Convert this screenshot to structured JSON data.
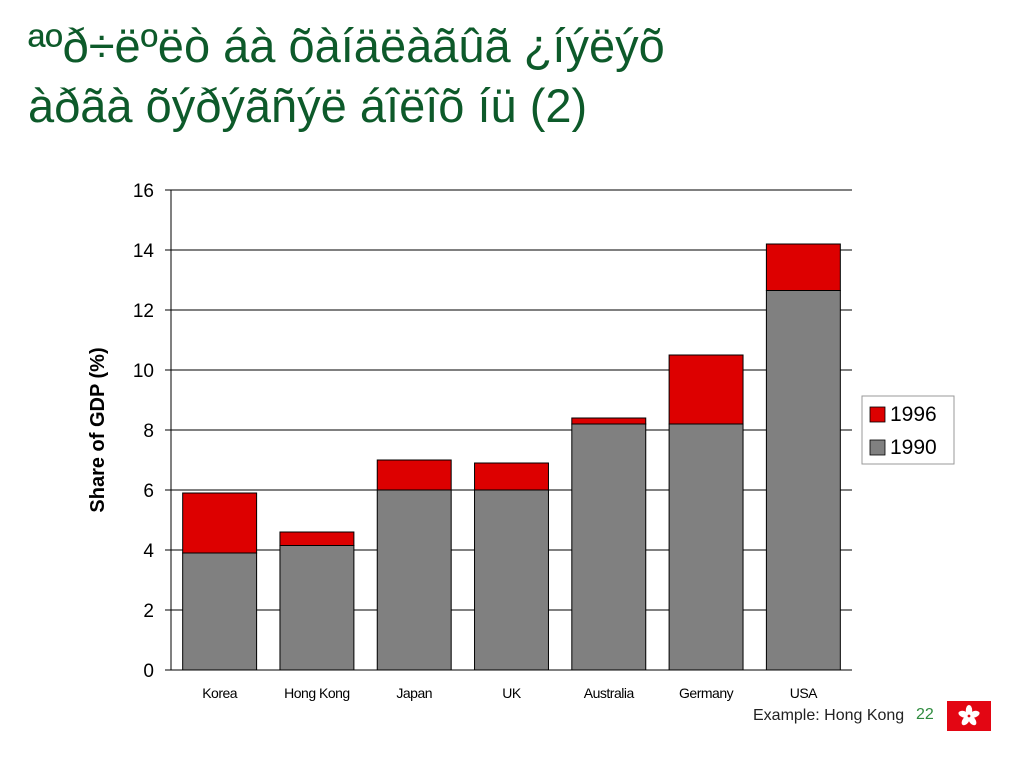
{
  "slide": {
    "title_line1": "ªºð÷ëºëò áà õàíäëàãûã ¿íýëýõ",
    "title_line2": "àðãà õýðýãñýë áîëîõ íü (2)",
    "footer_note": "Example: Hong Kong",
    "page_number": "22"
  },
  "colors": {
    "title": "#0d5a2a",
    "series_1990": "#808080",
    "series_1996": "#dd0000",
    "flag_red": "#e30613"
  },
  "chart_data": {
    "type": "bar",
    "stacked": true,
    "categories": [
      "Korea",
      "Hong Kong",
      "Japan",
      "UK",
      "Australia",
      "Germany",
      "USA"
    ],
    "series": [
      {
        "name": "1990",
        "color": "#808080",
        "values": [
          3.9,
          4.15,
          6.0,
          6.0,
          8.2,
          8.2,
          12.65
        ]
      },
      {
        "name": "1996",
        "color": "#dd0000",
        "values": [
          2.0,
          0.45,
          1.0,
          0.9,
          0.2,
          2.3,
          1.55
        ]
      }
    ],
    "title": "",
    "xlabel": "",
    "ylabel": "Share of GDP (%)",
    "ylim": [
      0,
      16
    ],
    "yticks": [
      0,
      2,
      4,
      6,
      8,
      10,
      12,
      14,
      16
    ],
    "grid": true,
    "legend": {
      "placement": "right",
      "entries": [
        "1996",
        "1990"
      ]
    }
  }
}
